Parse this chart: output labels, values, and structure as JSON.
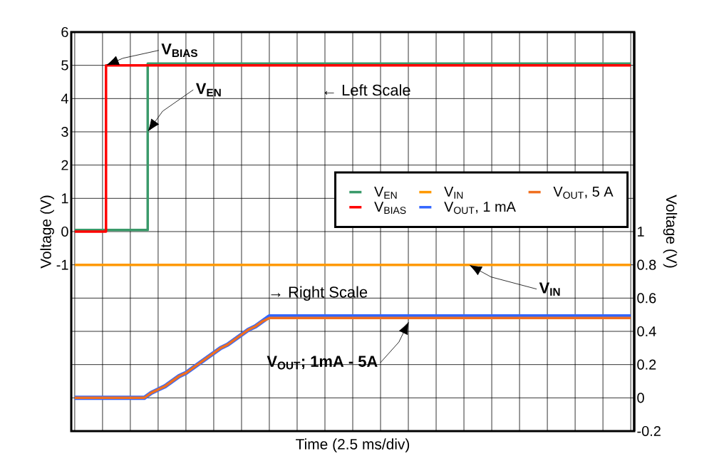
{
  "chart_data": {
    "type": "line",
    "xlabel": "Time (2.5 ms/div)",
    "ylabel": "Voltage (V)",
    "y2label": "Voltage (V)",
    "categories": [
      null,
      null,
      null,
      null,
      null,
      null,
      null,
      null,
      null,
      null,
      null,
      null,
      null,
      null,
      null,
      null,
      null,
      null,
      null,
      null,
      null,
      null,
      null,
      null,
      null,
      null,
      null,
      null,
      null,
      null,
      null,
      null,
      null,
      null,
      null,
      null,
      null,
      null,
      null,
      null,
      null,
      null,
      null,
      null,
      null,
      null,
      null,
      null,
      null,
      null,
      null,
      null,
      null,
      null,
      null,
      null,
      null,
      null,
      null,
      null,
      null,
      null,
      null,
      null,
      null,
      null,
      null,
      null,
      null,
      null,
      null,
      null,
      null,
      null,
      null,
      null,
      null,
      null,
      null,
      null,
      null
    ],
    "ylim": [
      -6,
      6
    ],
    "yticks": [
      {
        "value": -6,
        "label": null
      },
      {
        "value": -5,
        "label": null
      },
      {
        "value": -4,
        "label": null
      },
      {
        "value": -3,
        "label": null
      },
      {
        "value": -2,
        "label": null
      },
      -1,
      0,
      1,
      2,
      3,
      4,
      5,
      6
    ],
    "y2lim": [
      -0.2,
      2.2
    ],
    "y2ticks": [
      -0.2,
      0,
      0.2,
      0.4,
      0.6,
      0.8,
      1
    ],
    "grid": true,
    "legend": "right",
    "marker": "none",
    "line_style": "solid",
    "series": [
      {
        "name": "V$_{EN}$",
        "type": "step",
        "color": "#3a9a6a",
        "values": [
          0.05,
          0.05,
          0.05,
          0.05,
          0.05,
          0.05,
          0.05,
          0.05,
          0.05,
          0.05,
          0.05,
          5.05,
          5.05,
          5.05,
          5.05,
          5.05,
          5.05,
          5.05,
          5.05,
          5.05,
          5.05,
          5.05,
          5.05,
          5.05,
          5.05,
          5.05,
          5.05,
          5.05,
          5.05,
          5.05,
          5.05,
          5.05,
          5.05,
          5.05,
          5.05,
          5.05,
          5.05,
          5.05,
          5.05,
          5.05,
          5.05,
          5.05,
          5.05,
          5.05,
          5.05,
          5.05,
          5.05,
          5.05,
          5.05,
          5.05,
          5.05,
          5.05,
          5.05,
          5.05,
          5.05,
          5.05,
          5.05,
          5.05,
          5.05,
          5.05,
          5.05,
          5.05,
          5.05,
          5.05,
          5.05,
          5.05,
          5.05,
          5.05,
          5.05,
          5.05,
          5.05,
          5.05,
          5.05,
          5.05,
          5.05,
          5.05,
          5.05,
          5.05,
          5.05,
          5.05,
          5.05
        ]
      },
      {
        "name": "V$_{BIAS}$",
        "type": "step",
        "color": "#ff0000",
        "values": [
          0,
          0,
          0,
          0,
          0,
          5,
          5,
          5,
          5,
          5,
          5,
          5,
          5,
          5,
          5,
          5,
          5,
          5,
          5,
          5,
          5,
          5,
          5,
          5,
          5,
          5,
          5,
          5,
          5,
          5,
          5,
          5,
          5,
          5,
          5,
          5,
          5,
          5,
          5,
          5,
          5,
          5,
          5,
          5,
          5,
          5,
          5,
          5,
          5,
          5,
          5,
          5,
          5,
          5,
          5,
          5,
          5,
          5,
          5,
          5,
          5,
          5,
          5,
          5,
          5,
          5,
          5,
          5,
          5,
          5,
          5,
          5,
          5,
          5,
          5,
          5,
          5,
          5,
          5,
          5,
          5
        ]
      },
      {
        "name": "V$_{IN}$",
        "color": "#ff9900",
        "axis": "y2",
        "values": [
          0.8,
          0.8,
          0.8,
          0.8,
          0.8,
          0.8,
          0.8,
          0.8,
          0.8,
          0.8,
          0.8,
          0.8,
          0.8,
          0.8,
          0.8,
          0.8,
          0.8,
          0.8,
          0.8,
          0.8,
          0.8,
          0.8,
          0.8,
          0.8,
          0.8,
          0.8,
          0.8,
          0.8,
          0.8,
          0.8,
          0.8,
          0.8,
          0.8,
          0.8,
          0.8,
          0.8,
          0.8,
          0.8,
          0.8,
          0.8,
          0.8,
          0.8,
          0.8,
          0.8,
          0.8,
          0.8,
          0.8,
          0.8,
          0.8,
          0.8,
          0.8,
          0.8,
          0.8,
          0.8,
          0.8,
          0.8,
          0.8,
          0.8,
          0.8,
          0.8,
          0.8,
          0.8,
          0.8,
          0.8,
          0.8,
          0.8,
          0.8,
          0.8,
          0.8,
          0.8,
          0.8,
          0.8,
          0.8,
          0.8,
          0.8,
          0.8,
          0.8,
          0.8,
          0.8,
          0.8,
          0.8
        ]
      },
      {
        "name": "V$_{OUT}$, 1 mA",
        "color": "#3366ff",
        "axis": "y2",
        "values": [
          0,
          0,
          0,
          0,
          0,
          0,
          0,
          0,
          0,
          0,
          0,
          0.03,
          0.05,
          0.07,
          0.1,
          0.13,
          0.15,
          0.18,
          0.21,
          0.24,
          0.27,
          0.3,
          0.32,
          0.35,
          0.38,
          0.41,
          0.43,
          0.46,
          0.49,
          0.49,
          0.49,
          0.49,
          0.49,
          0.49,
          0.49,
          0.49,
          0.49,
          0.49,
          0.49,
          0.49,
          0.49,
          0.49,
          0.49,
          0.49,
          0.49,
          0.49,
          0.49,
          0.49,
          0.49,
          0.49,
          0.49,
          0.49,
          0.49,
          0.49,
          0.49,
          0.49,
          0.49,
          0.49,
          0.49,
          0.49,
          0.49,
          0.49,
          0.49,
          0.49,
          0.49,
          0.49,
          0.49,
          0.49,
          0.49,
          0.49,
          0.49,
          0.49,
          0.49,
          0.49,
          0.49,
          0.49,
          0.49,
          0.49,
          0.49,
          0.49,
          0.49
        ]
      },
      {
        "name": "V$_{OUT}$, 5 A",
        "color": "#f07020",
        "axis": "y2",
        "values": [
          0,
          0,
          0,
          0,
          0,
          0,
          0,
          0,
          0,
          0,
          0,
          0.03,
          0.05,
          0.07,
          0.1,
          0.13,
          0.15,
          0.18,
          0.21,
          0.24,
          0.27,
          0.3,
          0.32,
          0.35,
          0.38,
          0.41,
          0.43,
          0.46,
          0.48,
          0.48,
          0.48,
          0.48,
          0.48,
          0.48,
          0.48,
          0.48,
          0.48,
          0.48,
          0.48,
          0.48,
          0.48,
          0.48,
          0.48,
          0.48,
          0.48,
          0.48,
          0.48,
          0.48,
          0.48,
          0.48,
          0.48,
          0.48,
          0.48,
          0.48,
          0.48,
          0.48,
          0.48,
          0.48,
          0.48,
          0.48,
          0.48,
          0.48,
          0.48,
          0.48,
          0.48,
          0.48,
          0.48,
          0.48,
          0.48,
          0.48,
          0.48,
          0.48,
          0.48,
          0.48,
          0.48,
          0.48,
          0.48,
          0.48,
          0.48,
          0.48,
          0.48
        ]
      }
    ],
    "annotations": [
      {
        "text": "V$_{BIAS}$",
        "y": 5
      },
      "V$_{EN}$",
      "← Left Scale",
      "→ Right Scale",
      {
        "text": "V$_{IN}$",
        "y": -1
      },
      {
        "text": "V$_{OUT}$; 1mA - 5A",
        "y": -2.7
      }
    ]
  }
}
